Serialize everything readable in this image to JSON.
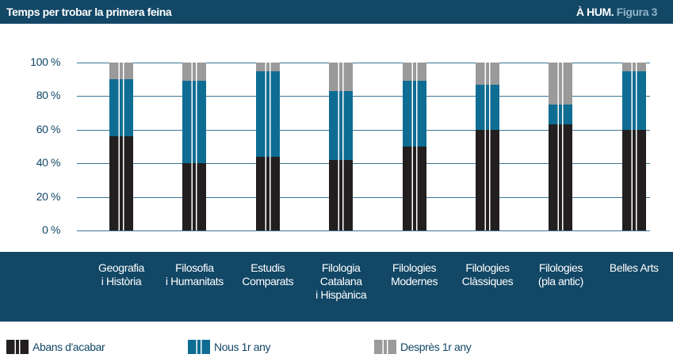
{
  "chart_data": {
    "type": "stacked_bar",
    "title": "Temps per trobar la primera feina",
    "source": "À HUM.",
    "figure": "Figura 3",
    "categories": [
      "Geografia\ni Història",
      "Filosofia\ni Humanitats",
      "Estudis\nComparats",
      "Filologia\nCatalana\ni Hispànica",
      "Filologies\nModernes",
      "Filologies\nClàssiques",
      "Filologies\n(pla antic)",
      "Belles Arts"
    ],
    "series": [
      {
        "name": "Abans d'acabar",
        "color": "#231f20",
        "values": [
          56,
          40,
          44,
          42,
          50,
          60,
          63,
          60
        ]
      },
      {
        "name": "Nous 1r any",
        "color": "#0f6d94",
        "values": [
          34,
          49,
          51,
          41,
          39,
          27,
          12,
          35
        ]
      },
      {
        "name": "Desprès 1r any",
        "color": "#9a9a9a",
        "values": [
          10,
          11,
          5,
          17,
          11,
          13,
          25,
          5
        ]
      }
    ],
    "ylim": [
      0,
      100
    ],
    "yticks": [
      {
        "value": 0,
        "label": "0 %"
      },
      {
        "value": 20,
        "label": "20 %"
      },
      {
        "value": 40,
        "label": "40 %"
      },
      {
        "value": 60,
        "label": "60 %"
      },
      {
        "value": 80,
        "label": "80 %"
      },
      {
        "value": 100,
        "label": "100 %"
      }
    ],
    "grid": true
  }
}
